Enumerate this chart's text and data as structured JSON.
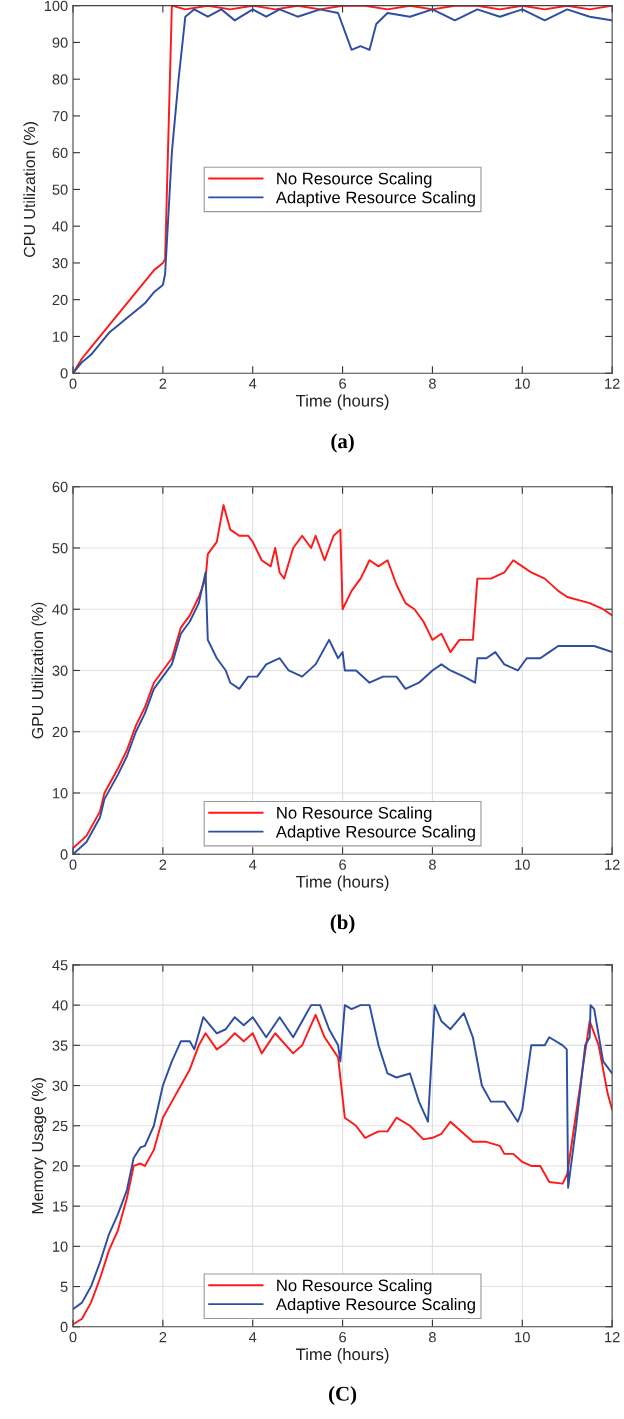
{
  "chart_data": [
    {
      "type": "line",
      "xlabel": "Time (hours)",
      "ylabel": "CPU Utilization (%)",
      "annotations": [
        "(a)"
      ],
      "xlim": [
        0,
        12
      ],
      "xticks": [
        0,
        2,
        4,
        6,
        8,
        10,
        12
      ],
      "ylim": [
        0,
        100
      ],
      "yticks": [
        0,
        10,
        20,
        30,
        40,
        50,
        60,
        70,
        80,
        90,
        100
      ],
      "grid": false,
      "legend": "center",
      "series": [
        {
          "name": "No Resource Scaling",
          "color": "#ff1a1a",
          "x": [
            0,
            0.2,
            0.4,
            0.6,
            0.8,
            1.0,
            1.2,
            1.4,
            1.6,
            1.8,
            2.0,
            2.05,
            2.2,
            2.5,
            3,
            3.5,
            4,
            4.5,
            5,
            5.5,
            6,
            6.5,
            7,
            7.5,
            8,
            8.5,
            9,
            9.5,
            10,
            10.5,
            11,
            11.5,
            12
          ],
          "values": [
            0,
            4,
            7,
            10,
            13,
            16,
            19,
            22,
            25,
            28,
            30,
            31,
            100,
            99,
            100,
            99,
            100,
            99,
            100,
            99,
            100,
            100,
            99,
            100,
            99,
            100,
            100,
            99,
            100,
            99,
            100,
            99,
            100
          ]
        },
        {
          "name": "Adaptive Resource Scaling",
          "color": "#2e4ea3",
          "x": [
            0,
            0.2,
            0.4,
            0.6,
            0.8,
            1.0,
            1.2,
            1.4,
            1.6,
            1.8,
            2.0,
            2.05,
            2.2,
            2.35,
            2.5,
            2.7,
            3,
            3.3,
            3.6,
            4,
            4.3,
            4.6,
            5,
            5.5,
            5.9,
            6.05,
            6.2,
            6.4,
            6.6,
            6.75,
            7,
            7.5,
            8,
            8.5,
            9,
            9.5,
            10,
            10.5,
            11,
            11.5,
            12
          ],
          "values": [
            0,
            3,
            5,
            8,
            11,
            13,
            15,
            17,
            19,
            22,
            24,
            27,
            60,
            80,
            97,
            99,
            97,
            99,
            96,
            99,
            97,
            99,
            97,
            99,
            98,
            93,
            88,
            89,
            88,
            95,
            98,
            97,
            99,
            96,
            99,
            97,
            99,
            96,
            99,
            97,
            96
          ]
        }
      ]
    },
    {
      "type": "line",
      "xlabel": "Time (hours)",
      "ylabel": "GPU Utilization (%)",
      "annotations": [
        "(b)"
      ],
      "xlim": [
        0,
        12
      ],
      "xticks": [
        0,
        2,
        4,
        6,
        8,
        10,
        12
      ],
      "ylim": [
        0,
        60
      ],
      "yticks": [
        0,
        10,
        20,
        30,
        40,
        50,
        60
      ],
      "grid": true,
      "legend": "bottom",
      "series": [
        {
          "name": "No Resource Scaling",
          "color": "#ff1a1a",
          "x": [
            0,
            0.3,
            0.6,
            0.7,
            1,
            1.2,
            1.4,
            1.6,
            1.8,
            2,
            2.2,
            2.4,
            2.6,
            2.8,
            2.95,
            3.0,
            3.2,
            3.35,
            3.5,
            3.7,
            3.9,
            4,
            4.2,
            4.4,
            4.5,
            4.6,
            4.7,
            4.9,
            5.1,
            5.3,
            5.4,
            5.6,
            5.8,
            5.95,
            6.0,
            6.2,
            6.4,
            6.6,
            6.8,
            7.0,
            7.2,
            7.4,
            7.6,
            7.8,
            8,
            8.2,
            8.4,
            8.6,
            8.9,
            9.0,
            9.3,
            9.6,
            9.8,
            10,
            10.2,
            10.5,
            10.8,
            11,
            11.5,
            11.8,
            12
          ],
          "values": [
            1,
            3,
            7,
            10,
            14,
            17,
            21,
            24,
            28,
            30,
            32,
            37,
            39,
            42,
            45,
            49,
            51,
            57,
            53,
            52,
            52,
            51,
            48,
            47,
            50,
            46,
            45,
            50,
            52,
            50,
            52,
            48,
            52,
            53,
            40,
            43,
            45,
            48,
            47,
            48,
            44,
            41,
            40,
            38,
            35,
            36,
            33,
            35,
            35,
            45,
            45,
            46,
            48,
            47,
            46,
            45,
            43,
            42,
            41,
            40,
            39
          ]
        },
        {
          "name": "Adaptive Resource Scaling",
          "color": "#2e4ea3",
          "x": [
            0,
            0.3,
            0.6,
            0.7,
            1,
            1.2,
            1.4,
            1.6,
            1.8,
            2,
            2.2,
            2.4,
            2.6,
            2.8,
            2.95,
            3.0,
            3.2,
            3.4,
            3.5,
            3.7,
            3.9,
            4.1,
            4.3,
            4.6,
            4.8,
            5.1,
            5.4,
            5.7,
            5.9,
            6.0,
            6.05,
            6.3,
            6.6,
            6.9,
            7.2,
            7.4,
            7.7,
            8,
            8.2,
            8.4,
            8.7,
            8.95,
            9.0,
            9.2,
            9.4,
            9.6,
            9.9,
            10.1,
            10.4,
            10.6,
            10.8,
            11.2,
            11.6,
            12
          ],
          "values": [
            0,
            2,
            6,
            9,
            13,
            16,
            20,
            23,
            27,
            29,
            31,
            36,
            38,
            41,
            46,
            35,
            32,
            30,
            28,
            27,
            29,
            29,
            31,
            32,
            30,
            29,
            31,
            35,
            32,
            33,
            30,
            30,
            28,
            29,
            29,
            27,
            28,
            30,
            31,
            30,
            29,
            28,
            32,
            32,
            33,
            31,
            30,
            32,
            32,
            33,
            34,
            34,
            34,
            33
          ]
        }
      ]
    },
    {
      "type": "line",
      "xlabel": "Time (hours)",
      "ylabel": "Memory Usage (%)",
      "annotations": [
        "(C)"
      ],
      "xlim": [
        0,
        12
      ],
      "xticks": [
        0,
        2,
        4,
        6,
        8,
        10,
        12
      ],
      "ylim": [
        0,
        45
      ],
      "yticks": [
        0,
        5,
        10,
        15,
        20,
        25,
        30,
        35,
        40,
        45
      ],
      "grid": true,
      "legend": "bottom",
      "series": [
        {
          "name": "No Resource Scaling",
          "color": "#ff1a1a",
          "x": [
            0,
            0.2,
            0.4,
            0.6,
            0.8,
            1.0,
            1.2,
            1.35,
            1.5,
            1.6,
            1.8,
            2.0,
            2.2,
            2.4,
            2.6,
            2.8,
            2.95,
            3.2,
            3.4,
            3.6,
            3.8,
            4.0,
            4.2,
            4.5,
            4.9,
            5.1,
            5.4,
            5.6,
            5.9,
            6.05,
            6.3,
            6.5,
            6.8,
            7.0,
            7.2,
            7.5,
            7.8,
            8.0,
            8.2,
            8.4,
            8.7,
            8.9,
            9.2,
            9.5,
            9.6,
            9.8,
            10.0,
            10.2,
            10.4,
            10.6,
            10.9,
            11.0,
            11.5,
            11.7,
            11.9,
            12
          ],
          "values": [
            0.3,
            1,
            3,
            6,
            9.5,
            12,
            16,
            20,
            20.3,
            20,
            22,
            26,
            28,
            30,
            32,
            35,
            36.5,
            34.5,
            35.3,
            36.5,
            35.5,
            36.5,
            34,
            36.5,
            34,
            35,
            38.8,
            36,
            33.5,
            26,
            25,
            23.5,
            24.3,
            24.3,
            26,
            25,
            23.3,
            23.5,
            24,
            25.5,
            24,
            23,
            23,
            22.5,
            21.5,
            21.5,
            20.5,
            20,
            20,
            18,
            17.8,
            19,
            38,
            35,
            29,
            27
          ]
        },
        {
          "name": "Adaptive Resource Scaling",
          "color": "#2e4ea3",
          "x": [
            0,
            0.2,
            0.4,
            0.6,
            0.8,
            1.0,
            1.2,
            1.35,
            1.5,
            1.6,
            1.8,
            2,
            2.2,
            2.4,
            2.6,
            2.7,
            2.9,
            3.2,
            3.4,
            3.6,
            3.8,
            4.0,
            4.3,
            4.6,
            4.9,
            5.1,
            5.3,
            5.5,
            5.7,
            5.9,
            5.95,
            6.05,
            6.2,
            6.4,
            6.6,
            6.8,
            7.0,
            7.2,
            7.5,
            7.7,
            7.9,
            8.05,
            8.2,
            8.4,
            8.7,
            8.9,
            9.1,
            9.3,
            9.6,
            9.9,
            10.0,
            10.1,
            10.2,
            10.5,
            10.6,
            10.9,
            10.99,
            11.02,
            11.2,
            11.4,
            11.5,
            11.52,
            11.6,
            11.8,
            12
          ],
          "values": [
            2.2,
            3,
            5,
            8,
            11.5,
            14,
            17,
            21,
            22.3,
            22.5,
            25,
            30,
            33,
            35.5,
            35.5,
            34.5,
            38.5,
            36.5,
            37,
            38.5,
            37.5,
            38.5,
            36,
            38.5,
            36,
            38,
            40,
            40,
            37,
            35,
            33,
            40,
            39.5,
            40,
            40,
            35,
            31.5,
            31,
            31.5,
            28,
            25.5,
            40,
            38,
            37,
            39,
            36,
            30,
            28,
            28,
            25.5,
            27,
            31,
            35,
            35,
            36,
            35,
            34.5,
            17.3,
            25,
            35,
            36,
            40,
            39.5,
            33,
            31.5
          ]
        }
      ]
    }
  ]
}
